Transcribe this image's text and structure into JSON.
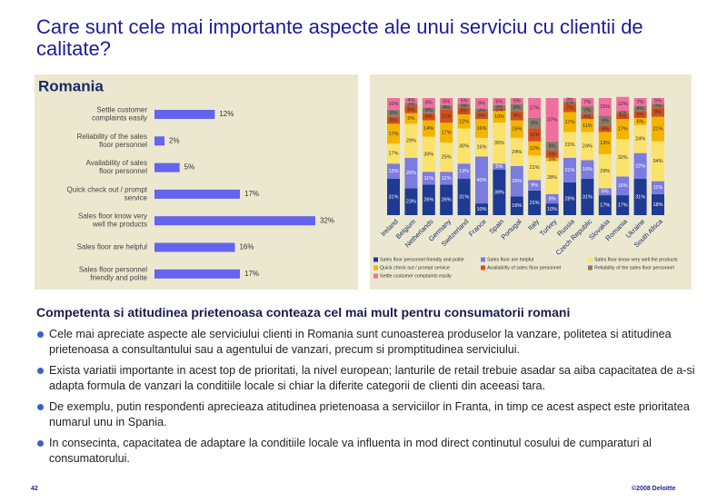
{
  "title": "Care sunt cele mai importante aspecte ale unui serviciu cu clientii de calitate?",
  "chart_data": [
    {
      "type": "hbar",
      "title": "Romania",
      "color": "#6464ec",
      "categories": [
        "Settle customer complaints easily",
        "Reliability of the sales floor personnel",
        "Availability of sales floor personnel",
        "Quick check out / prompt service",
        "Sales floor know very well the products",
        "Sales floor are helpful",
        "Sales floor personnel friendly and polite"
      ],
      "values": [
        12,
        2,
        5,
        17,
        32,
        16,
        17
      ],
      "value_labels": [
        "12%",
        "2%",
        "5%",
        "17%",
        "32%",
        "16%",
        "17%"
      ]
    },
    {
      "type": "stacked_bar",
      "categories": [
        "Ireland",
        "Belgium",
        "Netherlands",
        "Germany",
        "Switzerland",
        "France",
        "Spain",
        "Portugal",
        "Italy",
        "Turkey",
        "Russia",
        "Czech Republic",
        "Slovakia",
        "Romania",
        "Ukraine",
        "South Africa"
      ],
      "series": [
        {
          "name": "Sales floor personnel friendly and polite",
          "color": "#1f3a93",
          "values": [
            31,
            23,
            26,
            26,
            31,
            10,
            39,
            16,
            21,
            10,
            28,
            31,
            17,
            17,
            31,
            18
          ],
          "value_labels": [
            "31%",
            "23%",
            "26%",
            "26%",
            "31%",
            "10%",
            "39%",
            "16%",
            "21%",
            "10%",
            "28%",
            "31%",
            "17%",
            "17%",
            "31%",
            "18%"
          ]
        },
        {
          "name": "Sales floor are helpful",
          "color": "#7b7be0",
          "values": [
            13,
            26,
            11,
            11,
            13,
            40,
            5,
            26,
            9,
            8,
            21,
            16,
            6,
            16,
            22,
            11
          ],
          "value_labels": [
            "13%",
            "26%",
            "11%",
            "11%",
            "13%",
            "40%",
            "5%",
            "26%",
            "9%",
            "8%",
            "21%",
            "16%",
            "6%",
            "16%",
            "22%",
            "11%"
          ]
        },
        {
          "name": "Sales floor know very well the products",
          "color": "#fbe26a",
          "values": [
            17,
            29,
            30,
            25,
            30,
            16,
            35,
            24,
            21,
            28,
            22,
            24,
            29,
            32,
            24,
            34
          ],
          "value_labels": [
            "17%",
            "29%",
            "30%",
            "25%",
            "30%",
            "16%",
            "35%",
            "24%",
            "21%",
            "28%",
            "22%",
            "24%",
            "29%",
            "32%",
            "24%",
            "34%"
          ]
        },
        {
          "name": "Quick check out / prompt service",
          "color": "#f4b400",
          "values": [
            17,
            9,
            14,
            17,
            12,
            16,
            10,
            15,
            12,
            3,
            17,
            11,
            19,
            17,
            6,
            21
          ],
          "value_labels": [
            "17%",
            "9%",
            "14%",
            "17%",
            "12%",
            "16%",
            "10%",
            "15%",
            "12%",
            "3%",
            "17%",
            "11%",
            "19%",
            "17%",
            "6%",
            "21%"
          ]
        },
        {
          "name": "Availability of sales floor personnel",
          "color": "#d2501e",
          "values": [
            6,
            6,
            6,
            11,
            6,
            6,
            2,
            8,
            11,
            6,
            7,
            4,
            5,
            5,
            6,
            8
          ],
          "value_labels": [
            "6%",
            "6%",
            "6%",
            "11%",
            "6%",
            "6%",
            "2%",
            "8%",
            "11%",
            "6%",
            "7%",
            "4%",
            "5%",
            "5%",
            "6%",
            "8%"
          ]
        },
        {
          "name": "Reliability of the sales floor personnel",
          "color": "#8c7b6b",
          "values": [
            6,
            3,
            5,
            4,
            3,
            3,
            3,
            6,
            9,
            8,
            2,
            7,
            9,
            2,
            4,
            3
          ],
          "value_labels": [
            "6%",
            "3%",
            "5%",
            "4%",
            "3%",
            "3%",
            "3%",
            "6%",
            "9%",
            "8%",
            "2%",
            "7%",
            "9%",
            "2%",
            "4%",
            "3%"
          ]
        },
        {
          "name": "Settle customer complaints easily",
          "color": "#f06ea0",
          "values": [
            10,
            4,
            8,
            6,
            5,
            9,
            6,
            5,
            17,
            37,
            3,
            7,
            15,
            12,
            7,
            5
          ],
          "value_labels": [
            "10%",
            "4%",
            "8%",
            "6%",
            "5%",
            "9%",
            "6%",
            "5%",
            "17%",
            "37%",
            "3%",
            "7%",
            "15%",
            "12%",
            "7%",
            "5%"
          ]
        }
      ]
    }
  ],
  "heading": "Competenta si atitudinea prietenoasa conteaza cel mai mult pentru consumatorii romani",
  "bullets": [
    "Cele mai apreciate aspecte ale serviciului clienti in Romania sunt cunoasterea produselor la vanzare, politetea si atitudinea prietenoasa a consultantului sau a agentului de vanzari, precum si promptitudinea serviciului.",
    "Exista variatii importante in acest top de prioritati, la nivel european; lanturile de retail trebuie asadar sa aiba capacitatea de a-si adapta formula de vanzari la conditiile locale si chiar la diferite categorii de clienti din aceeasi tara.",
    "De exemplu, putin respondenti aprecieaza atitudinea prietenoasa a serviciilor in Franta, in timp ce acest aspect este prioritatea numarul unu in Spania.",
    "In consecinta, capacitatea de adaptare la conditiile locale va influenta in mod direct continutul cosului de cumparaturi al consumatorului."
  ],
  "page_number": "42",
  "copyright": "©2008 Deloitte"
}
